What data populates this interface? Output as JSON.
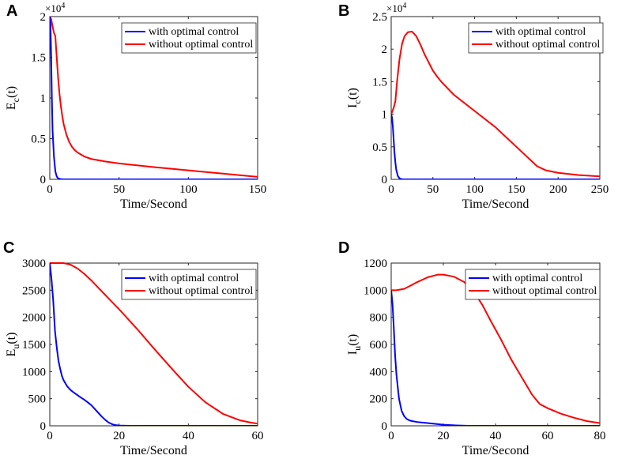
{
  "chart_data": [
    {
      "type": "line",
      "panel_label": "A",
      "xlabel": "Time/Second",
      "ylabel_main": "E",
      "ylabel_sub": "c",
      "ylabel_arg": "(t)",
      "xlim": [
        0,
        150
      ],
      "ylim": [
        0,
        2
      ],
      "xticks": [
        0,
        50,
        100,
        150
      ],
      "yticks": [
        0,
        0.5,
        1,
        1.5,
        2
      ],
      "ytick_labels": [
        "0",
        "0.5",
        "1",
        "1.5",
        "2"
      ],
      "y_multiplier": "×10",
      "y_multiplier_exp": "4",
      "legend": [
        "with optimal control",
        "without optimal control"
      ],
      "series": [
        {
          "name": "with optimal control",
          "color": "#0000ff",
          "x": [
            0,
            0.5,
            1,
            1.5,
            2,
            3,
            4,
            5,
            6,
            8,
            10,
            150
          ],
          "y": [
            2,
            1.9,
            1.5,
            1.0,
            0.6,
            0.28,
            0.1,
            0.035,
            0.012,
            0.002,
            0,
            0
          ]
        },
        {
          "name": "without optimal control",
          "color": "#ff0000",
          "x": [
            0,
            1,
            2,
            3,
            4,
            5,
            6,
            7,
            8,
            9,
            10,
            12,
            14,
            16,
            18,
            20,
            25,
            30,
            40,
            50,
            75,
            100,
            125,
            150
          ],
          "y": [
            2,
            1.97,
            1.88,
            1.8,
            1.76,
            1.5,
            1.25,
            1.05,
            0.9,
            0.78,
            0.68,
            0.55,
            0.46,
            0.4,
            0.36,
            0.33,
            0.28,
            0.25,
            0.22,
            0.195,
            0.15,
            0.11,
            0.07,
            0.03
          ]
        }
      ]
    },
    {
      "type": "line",
      "panel_label": "B",
      "xlabel": "Time/Second",
      "ylabel_main": "I",
      "ylabel_sub": "c",
      "ylabel_arg": "(t)",
      "xlim": [
        0,
        250
      ],
      "ylim": [
        0,
        2.5
      ],
      "xticks": [
        0,
        50,
        100,
        150,
        200,
        250
      ],
      "yticks": [
        0,
        0.5,
        1,
        1.5,
        2,
        2.5
      ],
      "ytick_labels": [
        "0",
        "0.5",
        "1",
        "1.5",
        "2",
        "2.5"
      ],
      "y_multiplier": "×10",
      "y_multiplier_exp": "4",
      "legend": [
        "with optimal control",
        "without optimal control"
      ],
      "series": [
        {
          "name": "with optimal control",
          "color": "#0000ff",
          "x": [
            0,
            1,
            2,
            3,
            4,
            5,
            6,
            8,
            10,
            12,
            15,
            250
          ],
          "y": [
            1.0,
            0.95,
            0.8,
            0.6,
            0.4,
            0.26,
            0.15,
            0.05,
            0.015,
            0.004,
            0,
            0
          ]
        },
        {
          "name": "without optimal control",
          "color": "#ff0000",
          "x": [
            0,
            3,
            5,
            7,
            10,
            13,
            16,
            20,
            25,
            30,
            35,
            40,
            50,
            55,
            60,
            75,
            100,
            125,
            150,
            175,
            185,
            200,
            225,
            250
          ],
          "y": [
            1.0,
            1.1,
            1.2,
            1.5,
            1.85,
            2.08,
            2.2,
            2.26,
            2.27,
            2.2,
            2.07,
            1.92,
            1.67,
            1.58,
            1.5,
            1.3,
            1.05,
            0.8,
            0.5,
            0.2,
            0.14,
            0.1,
            0.065,
            0.045
          ]
        }
      ]
    },
    {
      "type": "line",
      "panel_label": "C",
      "xlabel": "Time/Second",
      "ylabel_main": "E",
      "ylabel_sub": "u",
      "ylabel_arg": "(t)",
      "xlim": [
        0,
        60
      ],
      "ylim": [
        0,
        3000
      ],
      "xticks": [
        0,
        20,
        40,
        60
      ],
      "yticks": [
        0,
        500,
        1000,
        1500,
        2000,
        2500,
        3000
      ],
      "ytick_labels": [
        "0",
        "500",
        "1000",
        "1500",
        "2000",
        "2500",
        "3000"
      ],
      "legend": [
        "with optimal control",
        "without optimal control"
      ],
      "series": [
        {
          "name": "with optimal control",
          "color": "#0000ff",
          "x": [
            0,
            0.5,
            1,
            1.5,
            2,
            2.5,
            3,
            3.5,
            4,
            5,
            6,
            7,
            8,
            9,
            10,
            11,
            12,
            13,
            14,
            15,
            16,
            17,
            18,
            19,
            20,
            22,
            25,
            60
          ],
          "y": [
            3000,
            2700,
            2300,
            1750,
            1450,
            1200,
            1050,
            920,
            840,
            730,
            660,
            610,
            565,
            520,
            480,
            430,
            380,
            310,
            240,
            170,
            110,
            60,
            30,
            12,
            5,
            2,
            0,
            0
          ]
        },
        {
          "name": "without optimal control",
          "color": "#ff0000",
          "x": [
            0,
            2,
            4,
            6,
            8,
            10,
            12,
            15,
            18,
            20,
            25,
            30,
            35,
            40,
            45,
            50,
            55,
            58,
            60
          ],
          "y": [
            3000,
            3000,
            3000,
            2970,
            2900,
            2800,
            2680,
            2480,
            2280,
            2150,
            1800,
            1430,
            1070,
            720,
            430,
            220,
            100,
            60,
            40
          ]
        }
      ]
    },
    {
      "type": "line",
      "panel_label": "D",
      "xlabel": "Time/Second",
      "ylabel_main": "I",
      "ylabel_sub": "u",
      "ylabel_arg": "(t)",
      "xlim": [
        0,
        80
      ],
      "ylim": [
        0,
        1200
      ],
      "xticks": [
        0,
        20,
        40,
        60,
        80
      ],
      "yticks": [
        0,
        200,
        400,
        600,
        800,
        1000,
        1200
      ],
      "ytick_labels": [
        "0",
        "200",
        "400",
        "600",
        "800",
        "1000",
        "1200"
      ],
      "legend": [
        "with optimal control",
        "without optimal control"
      ],
      "series": [
        {
          "name": "with optimal control",
          "color": "#0000ff",
          "x": [
            0,
            0.5,
            1,
            1.5,
            2,
            3,
            4,
            5,
            6,
            7,
            8,
            10,
            15,
            20,
            25,
            30,
            80
          ],
          "y": [
            1000,
            900,
            720,
            520,
            380,
            200,
            110,
            70,
            50,
            40,
            35,
            28,
            18,
            8,
            3,
            0,
            0
          ]
        },
        {
          "name": "without optimal control",
          "color": "#ff0000",
          "x": [
            0,
            2,
            5,
            8,
            10,
            14,
            18,
            20,
            24,
            28,
            32,
            35,
            38,
            42,
            46,
            50,
            54,
            57,
            60,
            65,
            70,
            75,
            80
          ],
          "y": [
            1000,
            1000,
            1010,
            1040,
            1060,
            1095,
            1115,
            1115,
            1100,
            1060,
            980,
            890,
            780,
            640,
            490,
            360,
            230,
            160,
            130,
            90,
            60,
            35,
            20
          ]
        }
      ]
    }
  ]
}
